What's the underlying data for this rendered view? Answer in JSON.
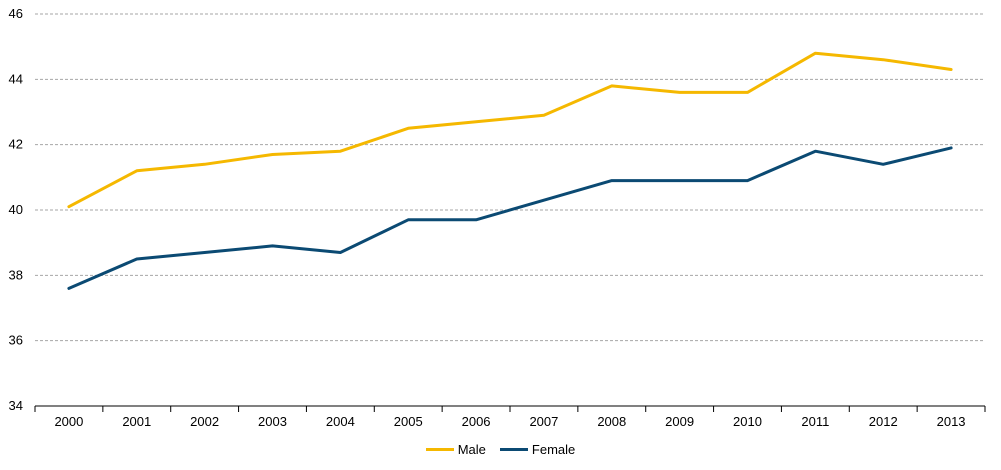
{
  "chart_data": {
    "type": "line",
    "title": "",
    "xlabel": "",
    "ylabel": "",
    "categories": [
      "2000",
      "2001",
      "2002",
      "2003",
      "2004",
      "2005",
      "2006",
      "2007",
      "2008",
      "2009",
      "2010",
      "2011",
      "2012",
      "2013"
    ],
    "ylim": [
      34,
      46
    ],
    "yticks": [
      34,
      36,
      38,
      40,
      42,
      44,
      46
    ],
    "grid": true,
    "legend_position": "bottom",
    "series": [
      {
        "name": "Male",
        "color": "#f5b800",
        "values": [
          40.1,
          41.2,
          41.4,
          41.7,
          41.8,
          42.5,
          42.7,
          42.9,
          43.8,
          43.6,
          43.6,
          44.8,
          44.6,
          44.3
        ]
      },
      {
        "name": "Female",
        "color": "#0b4a73",
        "values": [
          37.6,
          38.5,
          38.7,
          38.9,
          38.7,
          39.7,
          39.7,
          40.3,
          40.9,
          40.9,
          40.9,
          41.8,
          41.4,
          41.9
        ]
      }
    ]
  }
}
